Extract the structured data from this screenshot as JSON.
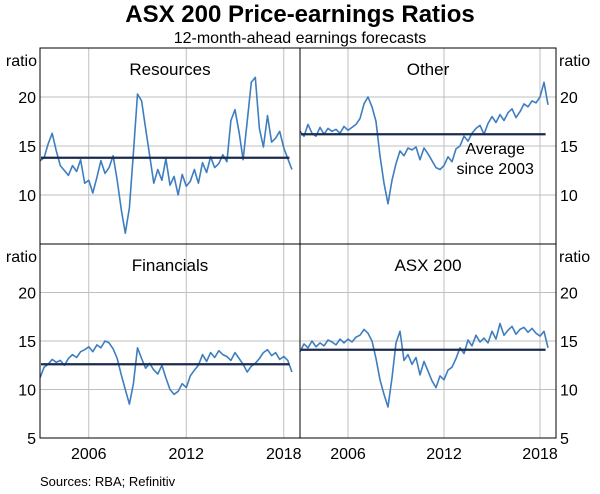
{
  "title": "ASX 200 Price-earnings Ratios",
  "subtitle": "12-month-ahead earnings forecasts",
  "source": "Sources: RBA; Refinitiv",
  "colors": {
    "series": "#3e7ebf",
    "average": "#1b2a4e",
    "grid": "#bfbfbf",
    "frame": "#000000"
  },
  "chart_data": [
    {
      "type": "line",
      "title": "Resources",
      "ylabel": "ratio",
      "ylim": [
        5,
        25
      ],
      "xlim": [
        2003,
        2019
      ],
      "xticks": [
        2006,
        2012,
        2018
      ],
      "yticks": [
        10,
        15,
        20
      ],
      "grid": true,
      "average": 13.8,
      "series": [
        {
          "x": [
            2003.0,
            2003.25,
            2003.5,
            2003.75,
            2004.0,
            2004.25,
            2004.5,
            2004.75,
            2005.0,
            2005.25,
            2005.5,
            2005.75,
            2006.0,
            2006.25,
            2006.5,
            2006.75,
            2007.0,
            2007.25,
            2007.5,
            2007.75,
            2008.0,
            2008.25,
            2008.5,
            2008.75,
            2009.0,
            2009.25,
            2009.5,
            2009.75,
            2010.0,
            2010.25,
            2010.5,
            2010.75,
            2011.0,
            2011.25,
            2011.5,
            2011.75,
            2012.0,
            2012.25,
            2012.5,
            2012.75,
            2013.0,
            2013.25,
            2013.5,
            2013.75,
            2014.0,
            2014.25,
            2014.5,
            2014.75,
            2015.0,
            2015.25,
            2015.5,
            2015.75,
            2016.0,
            2016.25,
            2016.5,
            2016.75,
            2017.0,
            2017.25,
            2017.5,
            2017.75,
            2018.0,
            2018.25,
            2018.5
          ],
          "values": [
            13.5,
            13.8,
            15.2,
            16.3,
            14.5,
            13.0,
            12.5,
            12.0,
            13.0,
            12.4,
            13.6,
            11.2,
            11.5,
            10.2,
            11.8,
            13.5,
            12.2,
            12.8,
            14.0,
            11.5,
            8.5,
            6.1,
            8.7,
            14.3,
            20.3,
            19.6,
            16.8,
            14.0,
            11.2,
            12.6,
            11.5,
            13.7,
            11.0,
            11.9,
            10.0,
            12.1,
            10.9,
            11.4,
            12.6,
            11.2,
            13.3,
            12.3,
            13.9,
            12.8,
            13.2,
            14.1,
            13.4,
            17.6,
            18.7,
            16.4,
            13.6,
            17.5,
            21.5,
            22.0,
            16.8,
            14.9,
            18.1,
            15.4,
            15.8,
            16.5,
            14.8,
            13.7,
            12.6
          ]
        }
      ]
    },
    {
      "type": "line",
      "title": "Other",
      "ylabel": "ratio",
      "ylim": [
        5,
        25
      ],
      "xlim": [
        2003,
        2019
      ],
      "xticks": [
        2006,
        2012,
        2018
      ],
      "yticks": [
        10,
        15,
        20
      ],
      "grid": true,
      "average": 16.2,
      "annotation": [
        "Average",
        "since 2003"
      ],
      "series": [
        {
          "x": [
            2003.0,
            2003.25,
            2003.5,
            2003.75,
            2004.0,
            2004.25,
            2004.5,
            2004.75,
            2005.0,
            2005.25,
            2005.5,
            2005.75,
            2006.0,
            2006.25,
            2006.5,
            2006.75,
            2007.0,
            2007.25,
            2007.5,
            2007.75,
            2008.0,
            2008.25,
            2008.5,
            2008.75,
            2009.0,
            2009.25,
            2009.5,
            2009.75,
            2010.0,
            2010.25,
            2010.5,
            2010.75,
            2011.0,
            2011.25,
            2011.5,
            2011.75,
            2012.0,
            2012.25,
            2012.5,
            2012.75,
            2013.0,
            2013.25,
            2013.5,
            2013.75,
            2014.0,
            2014.25,
            2014.5,
            2014.75,
            2015.0,
            2015.25,
            2015.5,
            2015.75,
            2016.0,
            2016.25,
            2016.5,
            2016.75,
            2017.0,
            2017.25,
            2017.5,
            2017.75,
            2018.0,
            2018.25,
            2018.5
          ],
          "values": [
            16.5,
            16.0,
            17.2,
            16.3,
            16.0,
            16.9,
            16.2,
            16.8,
            16.5,
            16.7,
            16.3,
            17.0,
            16.6,
            16.9,
            17.2,
            17.8,
            19.3,
            20.0,
            19.0,
            17.5,
            14.0,
            11.2,
            9.1,
            11.5,
            13.2,
            14.5,
            14.0,
            14.8,
            14.6,
            14.9,
            13.6,
            14.8,
            14.2,
            13.5,
            12.8,
            12.6,
            13.0,
            13.9,
            13.4,
            14.7,
            15.0,
            16.0,
            15.5,
            16.3,
            16.8,
            17.1,
            16.2,
            17.3,
            18.0,
            17.4,
            18.2,
            17.6,
            18.4,
            18.8,
            17.9,
            18.5,
            19.3,
            19.0,
            19.6,
            19.4,
            20.0,
            21.5,
            19.2
          ]
        }
      ]
    },
    {
      "type": "line",
      "title": "Financials",
      "ylabel": "ratio",
      "ylim": [
        5,
        25
      ],
      "xlim": [
        2003,
        2019
      ],
      "xticks": [
        2006,
        2012,
        2018
      ],
      "yticks": [
        5,
        10,
        15,
        20
      ],
      "grid": true,
      "average": 12.6,
      "series": [
        {
          "x": [
            2003.0,
            2003.25,
            2003.5,
            2003.75,
            2004.0,
            2004.25,
            2004.5,
            2004.75,
            2005.0,
            2005.25,
            2005.5,
            2005.75,
            2006.0,
            2006.25,
            2006.5,
            2006.75,
            2007.0,
            2007.25,
            2007.5,
            2007.75,
            2008.0,
            2008.25,
            2008.5,
            2008.75,
            2009.0,
            2009.25,
            2009.5,
            2009.75,
            2010.0,
            2010.25,
            2010.5,
            2010.75,
            2011.0,
            2011.25,
            2011.5,
            2011.75,
            2012.0,
            2012.25,
            2012.5,
            2012.75,
            2013.0,
            2013.25,
            2013.5,
            2013.75,
            2014.0,
            2014.25,
            2014.5,
            2014.75,
            2015.0,
            2015.25,
            2015.5,
            2015.75,
            2016.0,
            2016.25,
            2016.5,
            2016.75,
            2017.0,
            2017.25,
            2017.5,
            2017.75,
            2018.0,
            2018.25,
            2018.5
          ],
          "values": [
            11.2,
            12.3,
            12.6,
            13.1,
            12.8,
            13.0,
            12.5,
            13.2,
            13.6,
            13.3,
            13.9,
            14.1,
            14.4,
            13.9,
            14.6,
            14.3,
            15.0,
            14.8,
            14.2,
            13.2,
            11.5,
            10.0,
            8.5,
            10.6,
            14.3,
            13.2,
            12.2,
            12.7,
            12.0,
            11.6,
            12.5,
            11.2,
            10.0,
            9.5,
            9.8,
            10.6,
            10.2,
            11.4,
            12.0,
            12.5,
            13.6,
            12.9,
            13.8,
            13.3,
            14.0,
            13.6,
            13.4,
            13.0,
            13.8,
            13.2,
            12.6,
            11.8,
            12.4,
            12.7,
            13.2,
            13.8,
            14.1,
            13.5,
            13.8,
            13.1,
            13.4,
            13.0,
            11.8
          ]
        }
      ]
    },
    {
      "type": "line",
      "title": "ASX 200",
      "ylabel": "ratio",
      "ylim": [
        5,
        25
      ],
      "xlim": [
        2003,
        2019
      ],
      "xticks": [
        2006,
        2012,
        2018
      ],
      "yticks": [
        5,
        10,
        15,
        20
      ],
      "grid": true,
      "average": 14.1,
      "series": [
        {
          "x": [
            2003.0,
            2003.25,
            2003.5,
            2003.75,
            2004.0,
            2004.25,
            2004.5,
            2004.75,
            2005.0,
            2005.25,
            2005.5,
            2005.75,
            2006.0,
            2006.25,
            2006.5,
            2006.75,
            2007.0,
            2007.25,
            2007.5,
            2007.75,
            2008.0,
            2008.25,
            2008.5,
            2008.75,
            2009.0,
            2009.25,
            2009.5,
            2009.75,
            2010.0,
            2010.25,
            2010.5,
            2010.75,
            2011.0,
            2011.25,
            2011.5,
            2011.75,
            2012.0,
            2012.25,
            2012.5,
            2012.75,
            2013.0,
            2013.25,
            2013.5,
            2013.75,
            2014.0,
            2014.25,
            2014.5,
            2014.75,
            2015.0,
            2015.25,
            2015.5,
            2015.75,
            2016.0,
            2016.25,
            2016.5,
            2016.75,
            2017.0,
            2017.25,
            2017.5,
            2017.75,
            2018.0,
            2018.25,
            2018.5
          ],
          "values": [
            13.9,
            14.7,
            14.3,
            15.0,
            14.4,
            14.8,
            14.5,
            15.1,
            14.9,
            14.6,
            15.2,
            14.8,
            15.2,
            14.9,
            15.4,
            15.6,
            16.2,
            15.8,
            15.0,
            13.2,
            11.0,
            9.5,
            8.2,
            11.2,
            14.8,
            16.0,
            13.0,
            13.6,
            12.6,
            13.3,
            11.5,
            12.9,
            11.9,
            10.9,
            10.2,
            11.4,
            11.0,
            12.0,
            12.3,
            13.2,
            14.3,
            13.7,
            15.1,
            14.5,
            15.6,
            14.9,
            15.3,
            14.8,
            16.0,
            15.2,
            16.8,
            15.6,
            16.1,
            16.5,
            15.7,
            16.2,
            16.4,
            15.9,
            16.3,
            15.8,
            15.5,
            16.0,
            14.3
          ]
        }
      ]
    }
  ]
}
